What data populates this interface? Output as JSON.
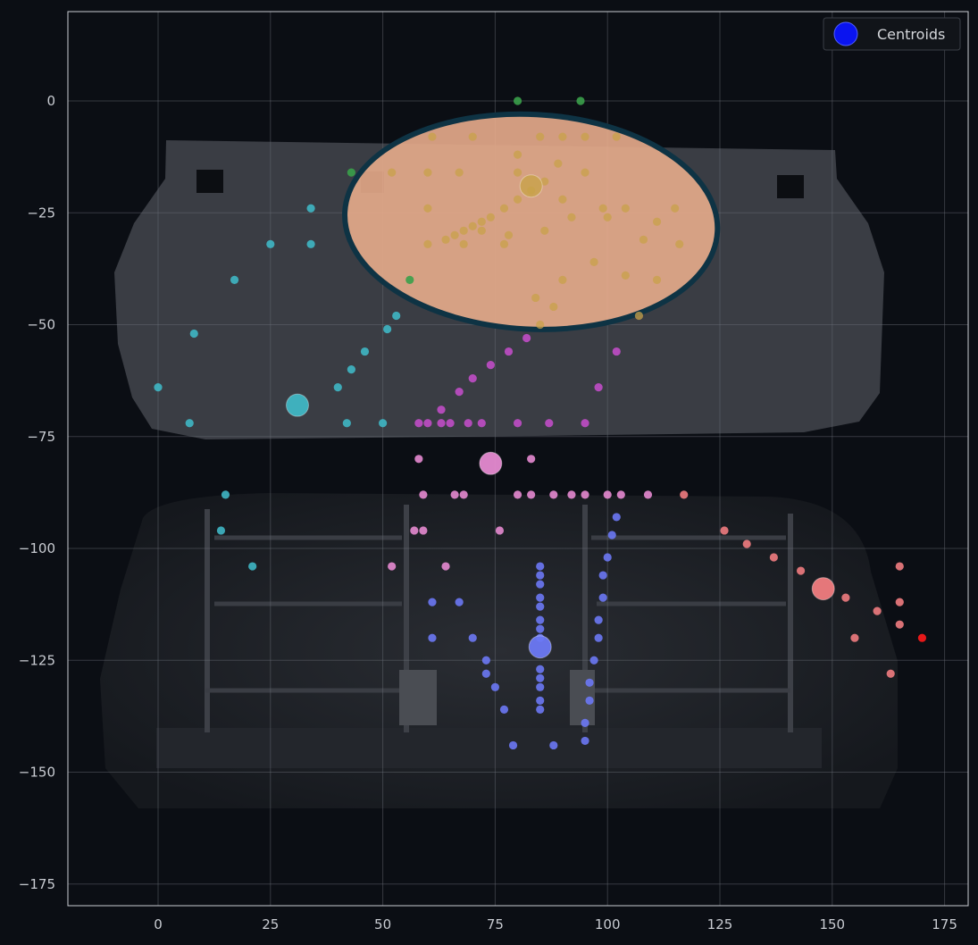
{
  "chart_data": {
    "type": "scatter",
    "title": "",
    "xlabel": "",
    "ylabel": "",
    "xlim": [
      -20,
      181
    ],
    "ylim": [
      -180,
      20
    ],
    "x_ticks": [
      0,
      25,
      50,
      75,
      100,
      125,
      150,
      175
    ],
    "y_ticks": [
      0,
      -25,
      -50,
      -75,
      -100,
      -125,
      -150,
      -175
    ],
    "grid": true,
    "legend": {
      "placement": "top-right",
      "entries": [
        {
          "label": "Centroids",
          "color": "#0a14f0"
        }
      ]
    },
    "background_image": "car-rear-seat-photo",
    "highlight_region": {
      "center": [
        83,
        -27
      ],
      "rx": 41.5,
      "ry": 24,
      "fill": "#e8ac8c",
      "stroke": "#0e3344"
    },
    "colors": {
      "cyan": "#3fb6c4",
      "green": "#3aa04a",
      "gold": "#c8a24a",
      "magenta": "#c04cc6",
      "pink": "#e58ad0",
      "blue": "#6c78f4",
      "salmon": "#f07c80",
      "red": "#ff1a1a"
    },
    "series": [
      {
        "color_key": "green",
        "points": [
          [
            80,
            0
          ],
          [
            94,
            0
          ],
          [
            43,
            -16
          ],
          [
            56,
            -40
          ]
        ]
      },
      {
        "color_key": "cyan",
        "points": [
          [
            34,
            -24
          ],
          [
            25,
            -32
          ],
          [
            34,
            -32
          ],
          [
            17,
            -40
          ],
          [
            53,
            -48
          ],
          [
            51,
            -51
          ],
          [
            46,
            -56
          ],
          [
            43,
            -60
          ],
          [
            8,
            -52
          ],
          [
            0,
            -64
          ],
          [
            40,
            -64
          ],
          [
            7,
            -72
          ],
          [
            42,
            -72
          ],
          [
            50,
            -72
          ]
        ]
      },
      {
        "color_key": "gold",
        "points": [
          [
            61,
            -8
          ],
          [
            70,
            -8
          ],
          [
            85,
            -8
          ],
          [
            90,
            -8
          ],
          [
            95,
            -8
          ],
          [
            102,
            -8
          ],
          [
            52,
            -16
          ],
          [
            60,
            -16
          ],
          [
            67,
            -16
          ],
          [
            80,
            -16
          ],
          [
            95,
            -16
          ],
          [
            80,
            -12
          ],
          [
            89,
            -14
          ],
          [
            86,
            -18
          ],
          [
            83,
            -20
          ],
          [
            80,
            -22
          ],
          [
            77,
            -24
          ],
          [
            74,
            -26
          ],
          [
            72,
            -27
          ],
          [
            70,
            -28
          ],
          [
            68,
            -29
          ],
          [
            66,
            -30
          ],
          [
            64,
            -31
          ],
          [
            60,
            -24
          ],
          [
            90,
            -22
          ],
          [
            99,
            -24
          ],
          [
            104,
            -24
          ],
          [
            115,
            -24
          ],
          [
            72,
            -29
          ],
          [
            78,
            -30
          ],
          [
            92,
            -26
          ],
          [
            100,
            -26
          ],
          [
            111,
            -27
          ],
          [
            60,
            -32
          ],
          [
            68,
            -32
          ],
          [
            77,
            -32
          ],
          [
            86,
            -29
          ],
          [
            108,
            -31
          ],
          [
            116,
            -32
          ],
          [
            97,
            -36
          ],
          [
            104,
            -39
          ],
          [
            90,
            -40
          ],
          [
            111,
            -40
          ],
          [
            84,
            -44
          ],
          [
            88,
            -46
          ],
          [
            107,
            -48
          ],
          [
            85,
            -50
          ]
        ]
      },
      {
        "color_key": "magenta",
        "points": [
          [
            82,
            -53
          ],
          [
            78,
            -56
          ],
          [
            102,
            -56
          ],
          [
            74,
            -59
          ],
          [
            70,
            -62
          ],
          [
            98,
            -64
          ],
          [
            67,
            -65
          ],
          [
            63,
            -69
          ],
          [
            58,
            -72
          ],
          [
            60,
            -72
          ],
          [
            63,
            -72
          ],
          [
            65,
            -72
          ],
          [
            69,
            -72
          ],
          [
            72,
            -72
          ],
          [
            80,
            -72
          ],
          [
            87,
            -72
          ],
          [
            95,
            -72
          ]
        ]
      },
      {
        "color_key": "pink",
        "points": [
          [
            58,
            -80
          ],
          [
            83,
            -80
          ],
          [
            59,
            -88
          ],
          [
            66,
            -88
          ],
          [
            68,
            -88
          ],
          [
            80,
            -88
          ],
          [
            83,
            -88
          ],
          [
            88,
            -88
          ],
          [
            92,
            -88
          ],
          [
            95,
            -88
          ],
          [
            100,
            -88
          ],
          [
            103,
            -88
          ],
          [
            109,
            -88
          ],
          [
            57,
            -96
          ],
          [
            59,
            -96
          ],
          [
            76,
            -96
          ],
          [
            52,
            -104
          ],
          [
            64,
            -104
          ]
        ]
      },
      {
        "color_key": "blue",
        "points": [
          [
            102,
            -93
          ],
          [
            101,
            -97
          ],
          [
            100,
            -102
          ],
          [
            99,
            -106
          ],
          [
            99,
            -111
          ],
          [
            98,
            -116
          ],
          [
            98,
            -120
          ],
          [
            97,
            -125
          ],
          [
            96,
            -130
          ],
          [
            96,
            -134
          ],
          [
            95,
            -139
          ],
          [
            95,
            -143
          ],
          [
            85,
            -104
          ],
          [
            85,
            -106
          ],
          [
            85,
            -108
          ],
          [
            85,
            -111
          ],
          [
            85,
            -113
          ],
          [
            85,
            -116
          ],
          [
            85,
            -118
          ],
          [
            85,
            -120
          ],
          [
            85,
            -127
          ],
          [
            85,
            -129
          ],
          [
            85,
            -131
          ],
          [
            85,
            -134
          ],
          [
            85,
            -136
          ],
          [
            61,
            -112
          ],
          [
            67,
            -112
          ],
          [
            61,
            -120
          ],
          [
            70,
            -120
          ],
          [
            73,
            -125
          ],
          [
            73,
            -128
          ],
          [
            75,
            -131
          ],
          [
            77,
            -136
          ],
          [
            79,
            -144
          ],
          [
            88,
            -144
          ]
        ]
      },
      {
        "color_key": "salmon",
        "points": [
          [
            117,
            -88
          ],
          [
            126,
            -96
          ],
          [
            131,
            -99
          ],
          [
            137,
            -102
          ],
          [
            143,
            -105
          ],
          [
            153,
            -111
          ],
          [
            160,
            -114
          ],
          [
            155,
            -120
          ],
          [
            165,
            -104
          ],
          [
            165,
            -112
          ],
          [
            165,
            -117
          ],
          [
            163,
            -128
          ]
        ]
      },
      {
        "color_key": "red",
        "points": [
          [
            170,
            -120
          ]
        ]
      },
      {
        "color_key": "cyan",
        "points": [
          [
            15,
            -88
          ],
          [
            14,
            -96
          ],
          [
            21,
            -104
          ]
        ]
      }
    ],
    "centroids": [
      {
        "x": 31,
        "y": -68,
        "color_key": "cyan"
      },
      {
        "x": 83,
        "y": -19,
        "color_key": "gold"
      },
      {
        "x": 74,
        "y": -81,
        "color_key": "pink"
      },
      {
        "x": 85,
        "y": -122,
        "color_key": "blue"
      },
      {
        "x": 148,
        "y": -109,
        "color_key": "salmon"
      }
    ]
  }
}
